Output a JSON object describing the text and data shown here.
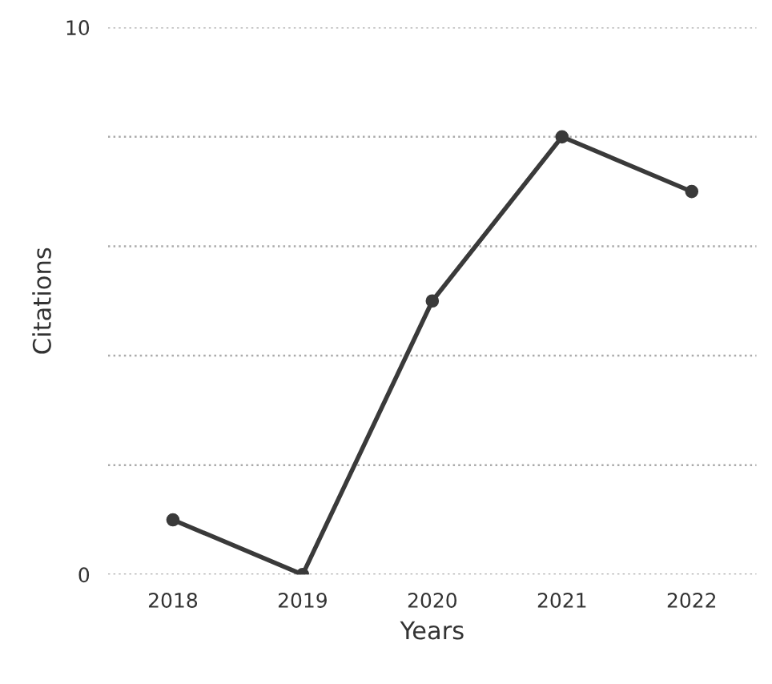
{
  "chart_data": {
    "type": "line",
    "xlabel": "Years",
    "ylabel": "Citations",
    "categories": [
      "2018",
      "2019",
      "2020",
      "2021",
      "2022"
    ],
    "series": [
      {
        "color": "#3a3a3a",
        "values": [
          1,
          0,
          5,
          8,
          7
        ]
      }
    ],
    "ylim": [
      0,
      10
    ],
    "yticks": [
      0,
      {
        "value": 2,
        "label": null
      },
      {
        "value": 4,
        "label": null
      },
      {
        "value": 6,
        "label": null
      },
      {
        "value": 8,
        "label": null
      },
      10
    ],
    "grid": "y",
    "marker": "circle",
    "line_style": "solid"
  }
}
